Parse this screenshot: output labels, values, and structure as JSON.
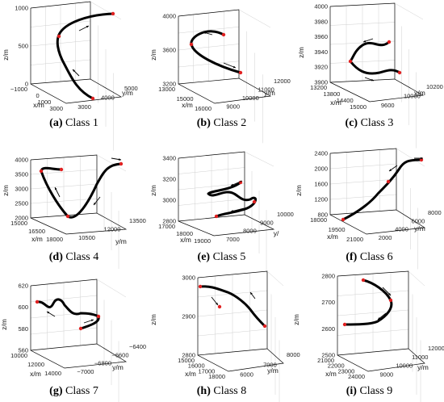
{
  "chart_data": [
    {
      "type": "line3d",
      "caption_letter": "(a)",
      "caption_text": "Class 1",
      "zlabel": "z/m",
      "xlabel": "x/m",
      "ylabel": "y/m",
      "z_ticks": [
        "0",
        "500",
        "1000"
      ],
      "x_ticks": [
        "−1000",
        "0",
        "1000",
        "3000"
      ],
      "y_ticks": [
        "3000",
        "4000",
        "5000"
      ]
    },
    {
      "type": "line3d",
      "caption_letter": "(b)",
      "caption_text": "Class 2",
      "zlabel": "z/m",
      "xlabel": "x/m",
      "ylabel": "y/m",
      "z_ticks": [
        "3200",
        "3600",
        "4000"
      ],
      "x_ticks": [
        "13000",
        "15000",
        "16000"
      ],
      "y_ticks": [
        "9000",
        "10000",
        "11000",
        "12000"
      ]
    },
    {
      "type": "line3d",
      "caption_letter": "(c)",
      "caption_text": "Class 3",
      "zlabel": "z/m",
      "xlabel": "x/m",
      "ylabel": "y/m",
      "z_ticks": [
        "3900",
        "3920",
        "3940",
        "3960",
        "3980",
        "4000"
      ],
      "x_ticks": [
        "13200",
        "13800",
        "14400",
        "15000"
      ],
      "y_ticks": [
        "9600",
        "10000",
        "10200"
      ]
    },
    {
      "type": "line3d",
      "caption_letter": "(d)",
      "caption_text": "Class 4",
      "zlabel": "z/m",
      "xlabel": "x/m",
      "ylabel": "y/m",
      "z_ticks": [
        "2000",
        "2500",
        "3000",
        "3500",
        "4000"
      ],
      "x_ticks": [
        "15000",
        "16500",
        "18000"
      ],
      "y_ticks": [
        "10500",
        "12000",
        "13500"
      ]
    },
    {
      "type": "line3d",
      "caption_letter": "(e)",
      "caption_text": "Class 5",
      "zlabel": "z/m",
      "xlabel": "x/m",
      "ylabel": "y/",
      "z_ticks": [
        "2800",
        "3000",
        "3200",
        "3400"
      ],
      "x_ticks": [
        "17000",
        "18000",
        "19000"
      ],
      "y_ticks": [
        "7000",
        "8000",
        "9000",
        "10000"
      ]
    },
    {
      "type": "line3d",
      "caption_letter": "(f)",
      "caption_text": "Class 6",
      "zlabel": "z/m",
      "xlabel": "x/m",
      "ylabel": "y/m",
      "z_ticks": [
        "800",
        "1200",
        "1600",
        "2000",
        "2400"
      ],
      "x_ticks": [
        "18000",
        "19500",
        "21000"
      ],
      "y_ticks": [
        "2000",
        "4000",
        "6000",
        "8000"
      ]
    },
    {
      "type": "line3d",
      "caption_letter": "(g)",
      "caption_text": "Class 7",
      "zlabel": "z/m",
      "xlabel": "x/m",
      "ylabel": "y/m",
      "z_ticks": [
        "560",
        "580",
        "600",
        "620"
      ],
      "x_ticks": [
        "10000",
        "12000",
        "14000"
      ],
      "y_ticks": [
        "−7000",
        "−6800",
        "−6600",
        "−6400"
      ]
    },
    {
      "type": "line3d",
      "caption_letter": "(h)",
      "caption_text": "Class 8",
      "zlabel": "z/m",
      "xlabel": "x/m",
      "ylabel": "y/m",
      "z_ticks": [
        "2800",
        "2900",
        "3000"
      ],
      "x_ticks": [
        "15000",
        "16000",
        "17000",
        "18000"
      ],
      "y_ticks": [
        "6000",
        "7000",
        "8000"
      ]
    },
    {
      "type": "line3d",
      "caption_letter": "(i)",
      "caption_text": "Class 9",
      "zlabel": "z/m",
      "xlabel": "x/m",
      "ylabel": "y/m",
      "z_ticks": [
        "2500",
        "2600",
        "2700",
        "2800"
      ],
      "x_ticks": [
        "21000",
        "22000",
        "23000",
        "24000"
      ],
      "y_ticks": [
        "9000",
        "10000",
        "11000",
        "12000"
      ]
    }
  ]
}
